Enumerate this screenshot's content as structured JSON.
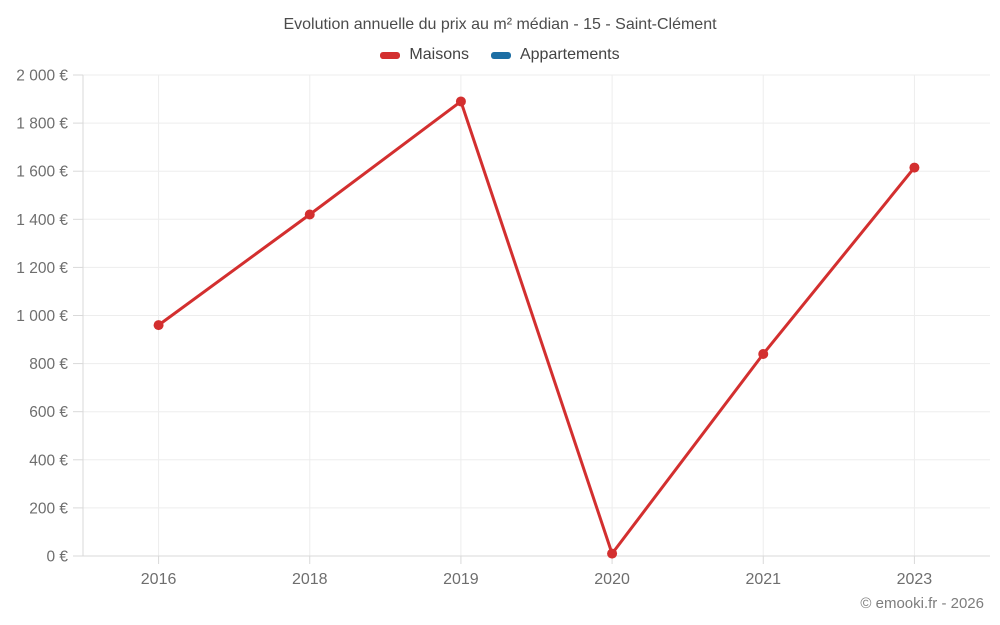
{
  "chart": {
    "title": "Evolution annuelle du prix au m² médian - 15 - Saint-Clément",
    "copyright": "© emooki.fr - 2026",
    "colors": {
      "maisons": "#d32f2f",
      "appartements": "#1c6ea4",
      "grid": "#ededed",
      "axis": "#d9d9d9",
      "tick_text": "#6e6e6e"
    }
  },
  "chart_data": {
    "type": "line",
    "title": "Evolution annuelle du prix au m² médian - 15 - Saint-Clément",
    "categories": [
      "2016",
      "2018",
      "2019",
      "2020",
      "2021",
      "2023"
    ],
    "series": [
      {
        "name": "Maisons",
        "color": "#d32f2f",
        "values": [
          960,
          1420,
          1890,
          10,
          840,
          1615
        ]
      },
      {
        "name": "Appartements",
        "color": "#1c6ea4",
        "values": []
      }
    ],
    "xlabel": "",
    "ylabel": "",
    "ylim": [
      0,
      2000
    ],
    "y_tick_step": 200,
    "y_tick_labels": [
      "0 €",
      "200 €",
      "400 €",
      "600 €",
      "800 €",
      "1 000 €",
      "1 200 €",
      "1 400 €",
      "1 600 €",
      "1 800 €",
      "2 000 €"
    ],
    "grid": true,
    "legend_position": "top",
    "annotation": "© emooki.fr - 2026"
  }
}
